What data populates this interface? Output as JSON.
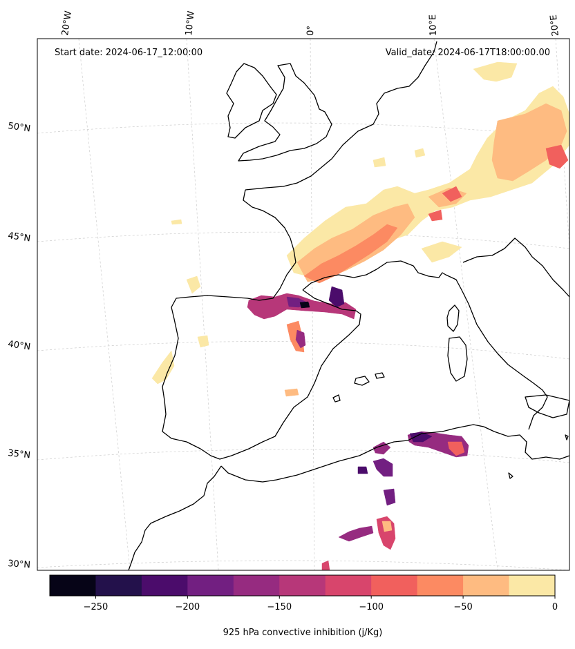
{
  "map": {
    "start_label": "Start date: 2024-06-17_12:00:00",
    "valid_label": "Valid_date: 2024-06-17T18:00:00.00",
    "lon_labels": [
      "20°W",
      "10°W",
      "0°",
      "10°E",
      "20°E"
    ],
    "lat_labels": [
      "50°N",
      "45°N",
      "40°N",
      "35°N",
      "30°N"
    ],
    "coastline_color": "#000000",
    "gridline_color": "#cccccc"
  },
  "colorbar": {
    "label": "925 hPa convective inhibition (j/Kg)",
    "ticks": [
      "−250",
      "−200",
      "−150",
      "−100",
      "−50",
      "0"
    ],
    "tick_values": [
      -250,
      -200,
      -150,
      -100,
      -50,
      0
    ],
    "range": [
      -275,
      0
    ],
    "levels": [
      -275,
      -250,
      -225,
      -200,
      -175,
      -150,
      -125,
      -100,
      -75,
      -50,
      -25,
      0
    ],
    "colors": [
      "#060417",
      "#23114b",
      "#4b0c6b",
      "#721f81",
      "#962b80",
      "#b73779",
      "#d8456c",
      "#f1605d",
      "#fc8a62",
      "#febb81",
      "#fbe8a6"
    ],
    "colormap": "magma"
  }
}
